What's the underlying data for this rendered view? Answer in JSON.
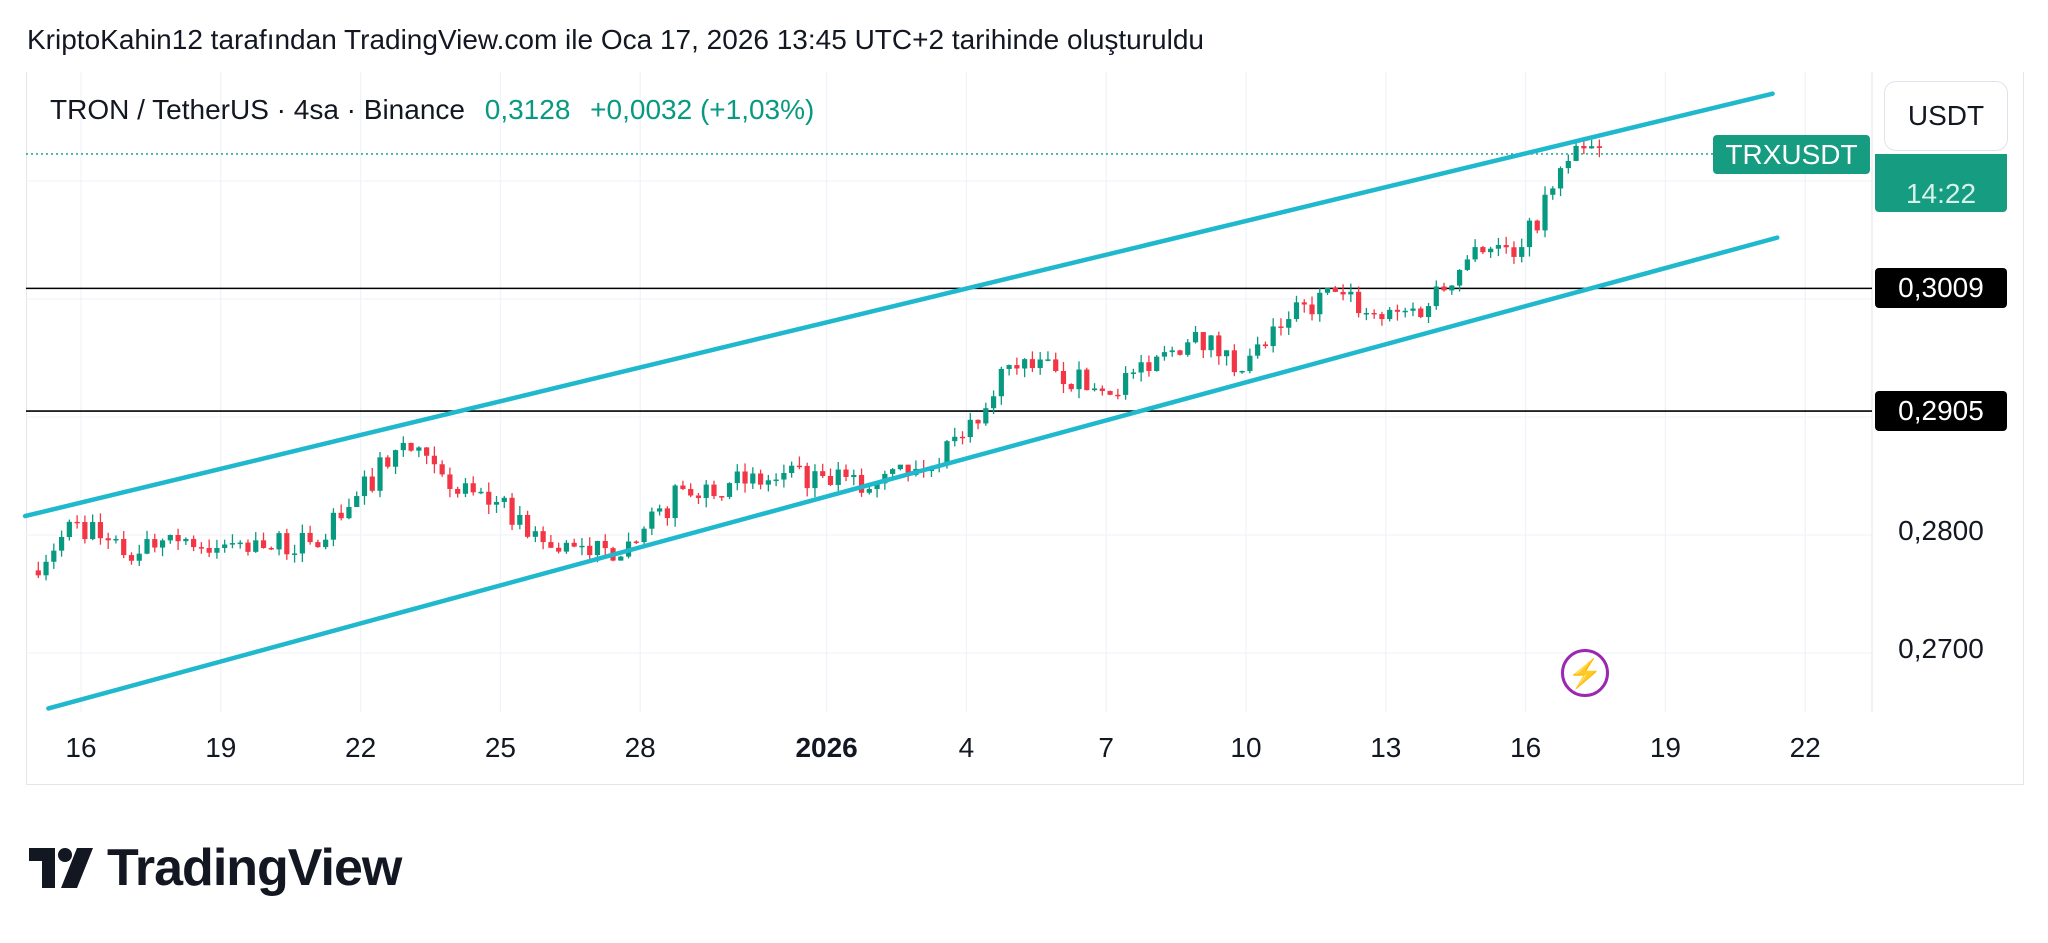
{
  "caption": "KriptoKahin12 tarafından TradingView.com ile Oca 17, 2026 13:45 UTC+2 tarihinde oluşturuldu",
  "legend": {
    "symbol": "TRON / TetherUS · 4sa · Binance",
    "price": "0,3128",
    "change": "+0,0032 (+1,03%)"
  },
  "currency_button": "USDT",
  "symbol_label": "TRXUSDT",
  "countdown": "14:22",
  "brand": "TradingView",
  "colors": {
    "up": "#089981",
    "down": "#f23645",
    "channel": "#1fb8cd",
    "label": "#169c80"
  },
  "chart_data": {
    "type": "candlestick",
    "timeframe": "4h",
    "candles_per_day": 6,
    "days": [
      "Dec 15",
      "Dec 16",
      "Dec 17",
      "Dec 18",
      "Dec 19",
      "Dec 20",
      "Dec 21",
      "Dec 22",
      "Dec 23",
      "Dec 24",
      "Dec 25",
      "Dec 26",
      "Dec 27",
      "Dec 28",
      "Dec 29",
      "Dec 30",
      "Dec 31",
      "Jan 1",
      "Jan 2",
      "Jan 3",
      "Jan 4",
      "Jan 5",
      "Jan 6",
      "Jan 7",
      "Jan 8",
      "Jan 9",
      "Jan 10",
      "Jan 11",
      "Jan 12",
      "Jan 13",
      "Jan 14",
      "Jan 15",
      "Jan 16",
      "Jan 17"
    ],
    "daily_close": [
      0.2811,
      0.2783,
      0.28,
      0.2789,
      0.2789,
      0.2794,
      0.2833,
      0.2878,
      0.2839,
      0.2828,
      0.2794,
      0.2783,
      0.2794,
      0.2839,
      0.2844,
      0.2847,
      0.285,
      0.2839,
      0.2856,
      0.2883,
      0.2944,
      0.2939,
      0.2922,
      0.2939,
      0.2972,
      0.2939,
      0.2983,
      0.3006,
      0.2983,
      0.2994,
      0.3044,
      0.3044,
      0.3117,
      0.3128
    ],
    "first_open": 0.277,
    "last_price": 0.3128,
    "ylim": [
      0.2655,
      0.3215
    ],
    "price_ticks": [
      {
        "value": 0.3009,
        "label": "0,3009",
        "style": "level"
      },
      {
        "value": 0.2905,
        "label": "0,2905",
        "style": "level"
      },
      {
        "value": 0.28,
        "label": "0,2800",
        "style": "tick"
      },
      {
        "value": 0.27,
        "label": "0,2700",
        "style": "tick"
      }
    ],
    "x_ticks": [
      {
        "day": 1,
        "label": "16"
      },
      {
        "day": 4,
        "label": "19"
      },
      {
        "day": 7,
        "label": "22"
      },
      {
        "day": 10,
        "label": "25"
      },
      {
        "day": 13,
        "label": "28"
      },
      {
        "day": 17,
        "label": "2026",
        "bold": true
      },
      {
        "day": 20,
        "label": "4"
      },
      {
        "day": 23,
        "label": "7"
      },
      {
        "day": 26,
        "label": "10"
      },
      {
        "day": 29,
        "label": "13"
      },
      {
        "day": 32,
        "label": "16"
      },
      {
        "day": 35,
        "label": "19"
      },
      {
        "day": 38,
        "label": "22"
      }
    ],
    "horizontal_levels": [
      0.3009,
      0.2905
    ],
    "channel": {
      "upper": [
        {
          "day": -0.2,
          "price": 0.2816
        },
        {
          "day": 37.3,
          "price": 0.3174
        }
      ],
      "lower": [
        {
          "day": 0.3,
          "price": 0.2653
        },
        {
          "day": 37.4,
          "price": 0.3052
        }
      ]
    }
  }
}
